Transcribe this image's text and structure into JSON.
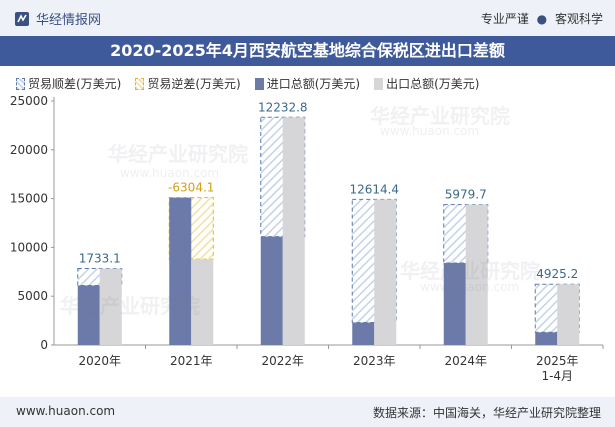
{
  "header": {
    "logo_text": "华经情报网",
    "slogan_left": "专业严谨",
    "slogan_dot": "●",
    "slogan_right": "客观科学"
  },
  "title": "2020-2025年4月西安航空基地综合保税区进出口差额",
  "footer": {
    "url": "www.huaon.com",
    "source": "数据来源：中国海关，华经产业研究院整理"
  },
  "watermark": {
    "text": "华经产业研究院",
    "url": "www.huaon.com"
  },
  "colors": {
    "title_bg": "#3f5a9a",
    "import": "#6b7aa8",
    "export": "#d6d6d8",
    "surplus_border": "#5a7aa8",
    "deficit_border": "#e0b820",
    "surplus_label": "#3a6a8a",
    "deficit_label": "#d4a017"
  },
  "chart_data": {
    "type": "bar",
    "title": "2020-2025年4月西安航空基地综合保税区进出口差额",
    "legend": [
      "贸易顺差(万美元)",
      "贸易逆差(万美元)",
      "进口总额(万美元)",
      "出口总额(万美元)"
    ],
    "categories": [
      [
        "2020年"
      ],
      [
        "2021年"
      ],
      [
        "2022年"
      ],
      [
        "2023年"
      ],
      [
        "2024年"
      ],
      [
        "2025年",
        "1-4月"
      ]
    ],
    "ylim": [
      0,
      25000
    ],
    "yticks": [
      0,
      5000,
      10000,
      15000,
      20000,
      25000
    ],
    "series": [
      {
        "name": "进口总额(万美元)",
        "values": [
          6100,
          15100,
          11100,
          2300,
          8400,
          1300
        ]
      },
      {
        "name": "出口总额(万美元)",
        "values": [
          7833.1,
          8795.9,
          23332.8,
          14914.4,
          14379.7,
          6225.2
        ]
      }
    ],
    "balance": [
      1733.1,
      -6304.1,
      12232.8,
      12614.4,
      5979.7,
      4925.2
    ],
    "balance_labels": [
      "1733.1",
      "-6304.1",
      "12232.8",
      "12614.4",
      "5979.7",
      "4925.2"
    ],
    "xlabel": "",
    "ylabel": ""
  }
}
